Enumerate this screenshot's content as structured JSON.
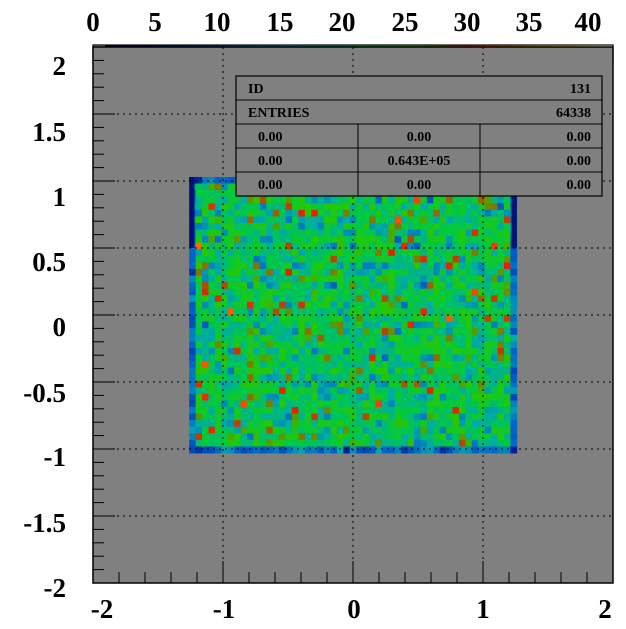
{
  "chart_data": {
    "type": "heatmap",
    "title": "",
    "xlabel": "",
    "ylabel": "",
    "xlim": [
      -2,
      2
    ],
    "ylim": [
      -2,
      2
    ],
    "zlim": [
      0,
      42
    ],
    "grid": true,
    "x_ticks": [
      "-2",
      "-1",
      "0",
      "1",
      "2"
    ],
    "y_ticks": [
      "2",
      "1.5",
      "1",
      "0.5",
      "0",
      "-0.5",
      "-1",
      "-1.5",
      "-2"
    ],
    "color_scale_ticks": [
      "0",
      "5",
      "10",
      "15",
      "20",
      "25",
      "30",
      "35",
      "40"
    ],
    "filled_region": {
      "x_range": [
        -1.26,
        1.26
      ],
      "y_range": [
        -1.03,
        1.03
      ],
      "bins_x": 51,
      "bins_y": 42,
      "typical_range": [
        10,
        32
      ]
    },
    "edge_bands": {
      "x_ranges": [
        [
          -1.26,
          -1.22
        ],
        [
          1.22,
          1.26
        ]
      ],
      "y_range": [
        0.5,
        1.03
      ],
      "value": 2
    },
    "colors": {
      "frame_background": "#808080",
      "page_background": "#ffffff"
    },
    "stats_box": {
      "rows": [
        [
          "ID",
          "131"
        ],
        [
          "ENTRIES",
          "64338"
        ]
      ],
      "grid": [
        [
          "0.00",
          "0.00",
          "0.00"
        ],
        [
          "0.00",
          "0.643E+05",
          "0.00"
        ],
        [
          "0.00",
          "0.00",
          "0.00"
        ]
      ]
    }
  }
}
